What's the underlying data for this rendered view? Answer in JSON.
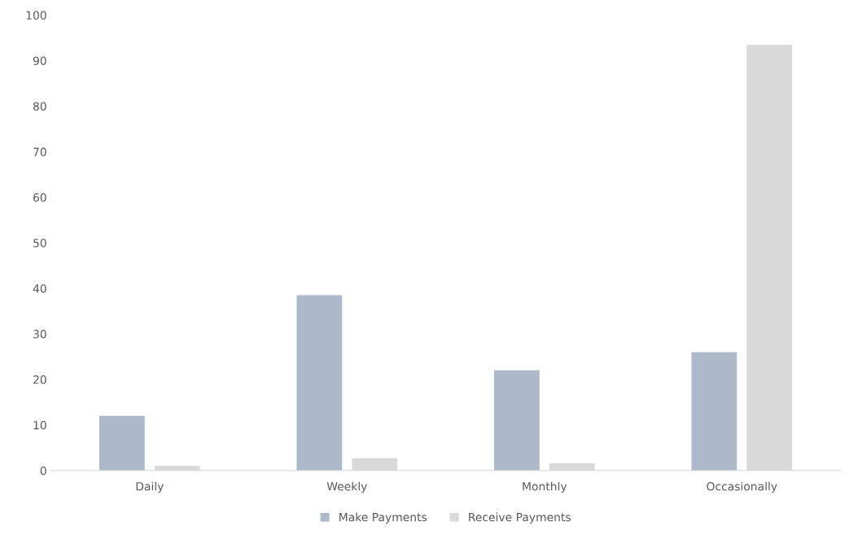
{
  "chart_data": {
    "type": "bar",
    "categories": [
      "Daily",
      "Weekly",
      "Monthly",
      "Occasionally"
    ],
    "series": [
      {
        "name": "Make Payments",
        "color": "#adb9ca",
        "values": [
          12,
          38.5,
          22,
          26
        ]
      },
      {
        "name": "Receive Payments",
        "color": "#d9d9d9",
        "values": [
          1,
          2.7,
          1.6,
          93.5
        ]
      }
    ],
    "ylim": [
      0,
      100
    ],
    "yticks": [
      0,
      10,
      20,
      30,
      40,
      50,
      60,
      70,
      80,
      90,
      100
    ],
    "grid": false,
    "legend": "bottom"
  }
}
